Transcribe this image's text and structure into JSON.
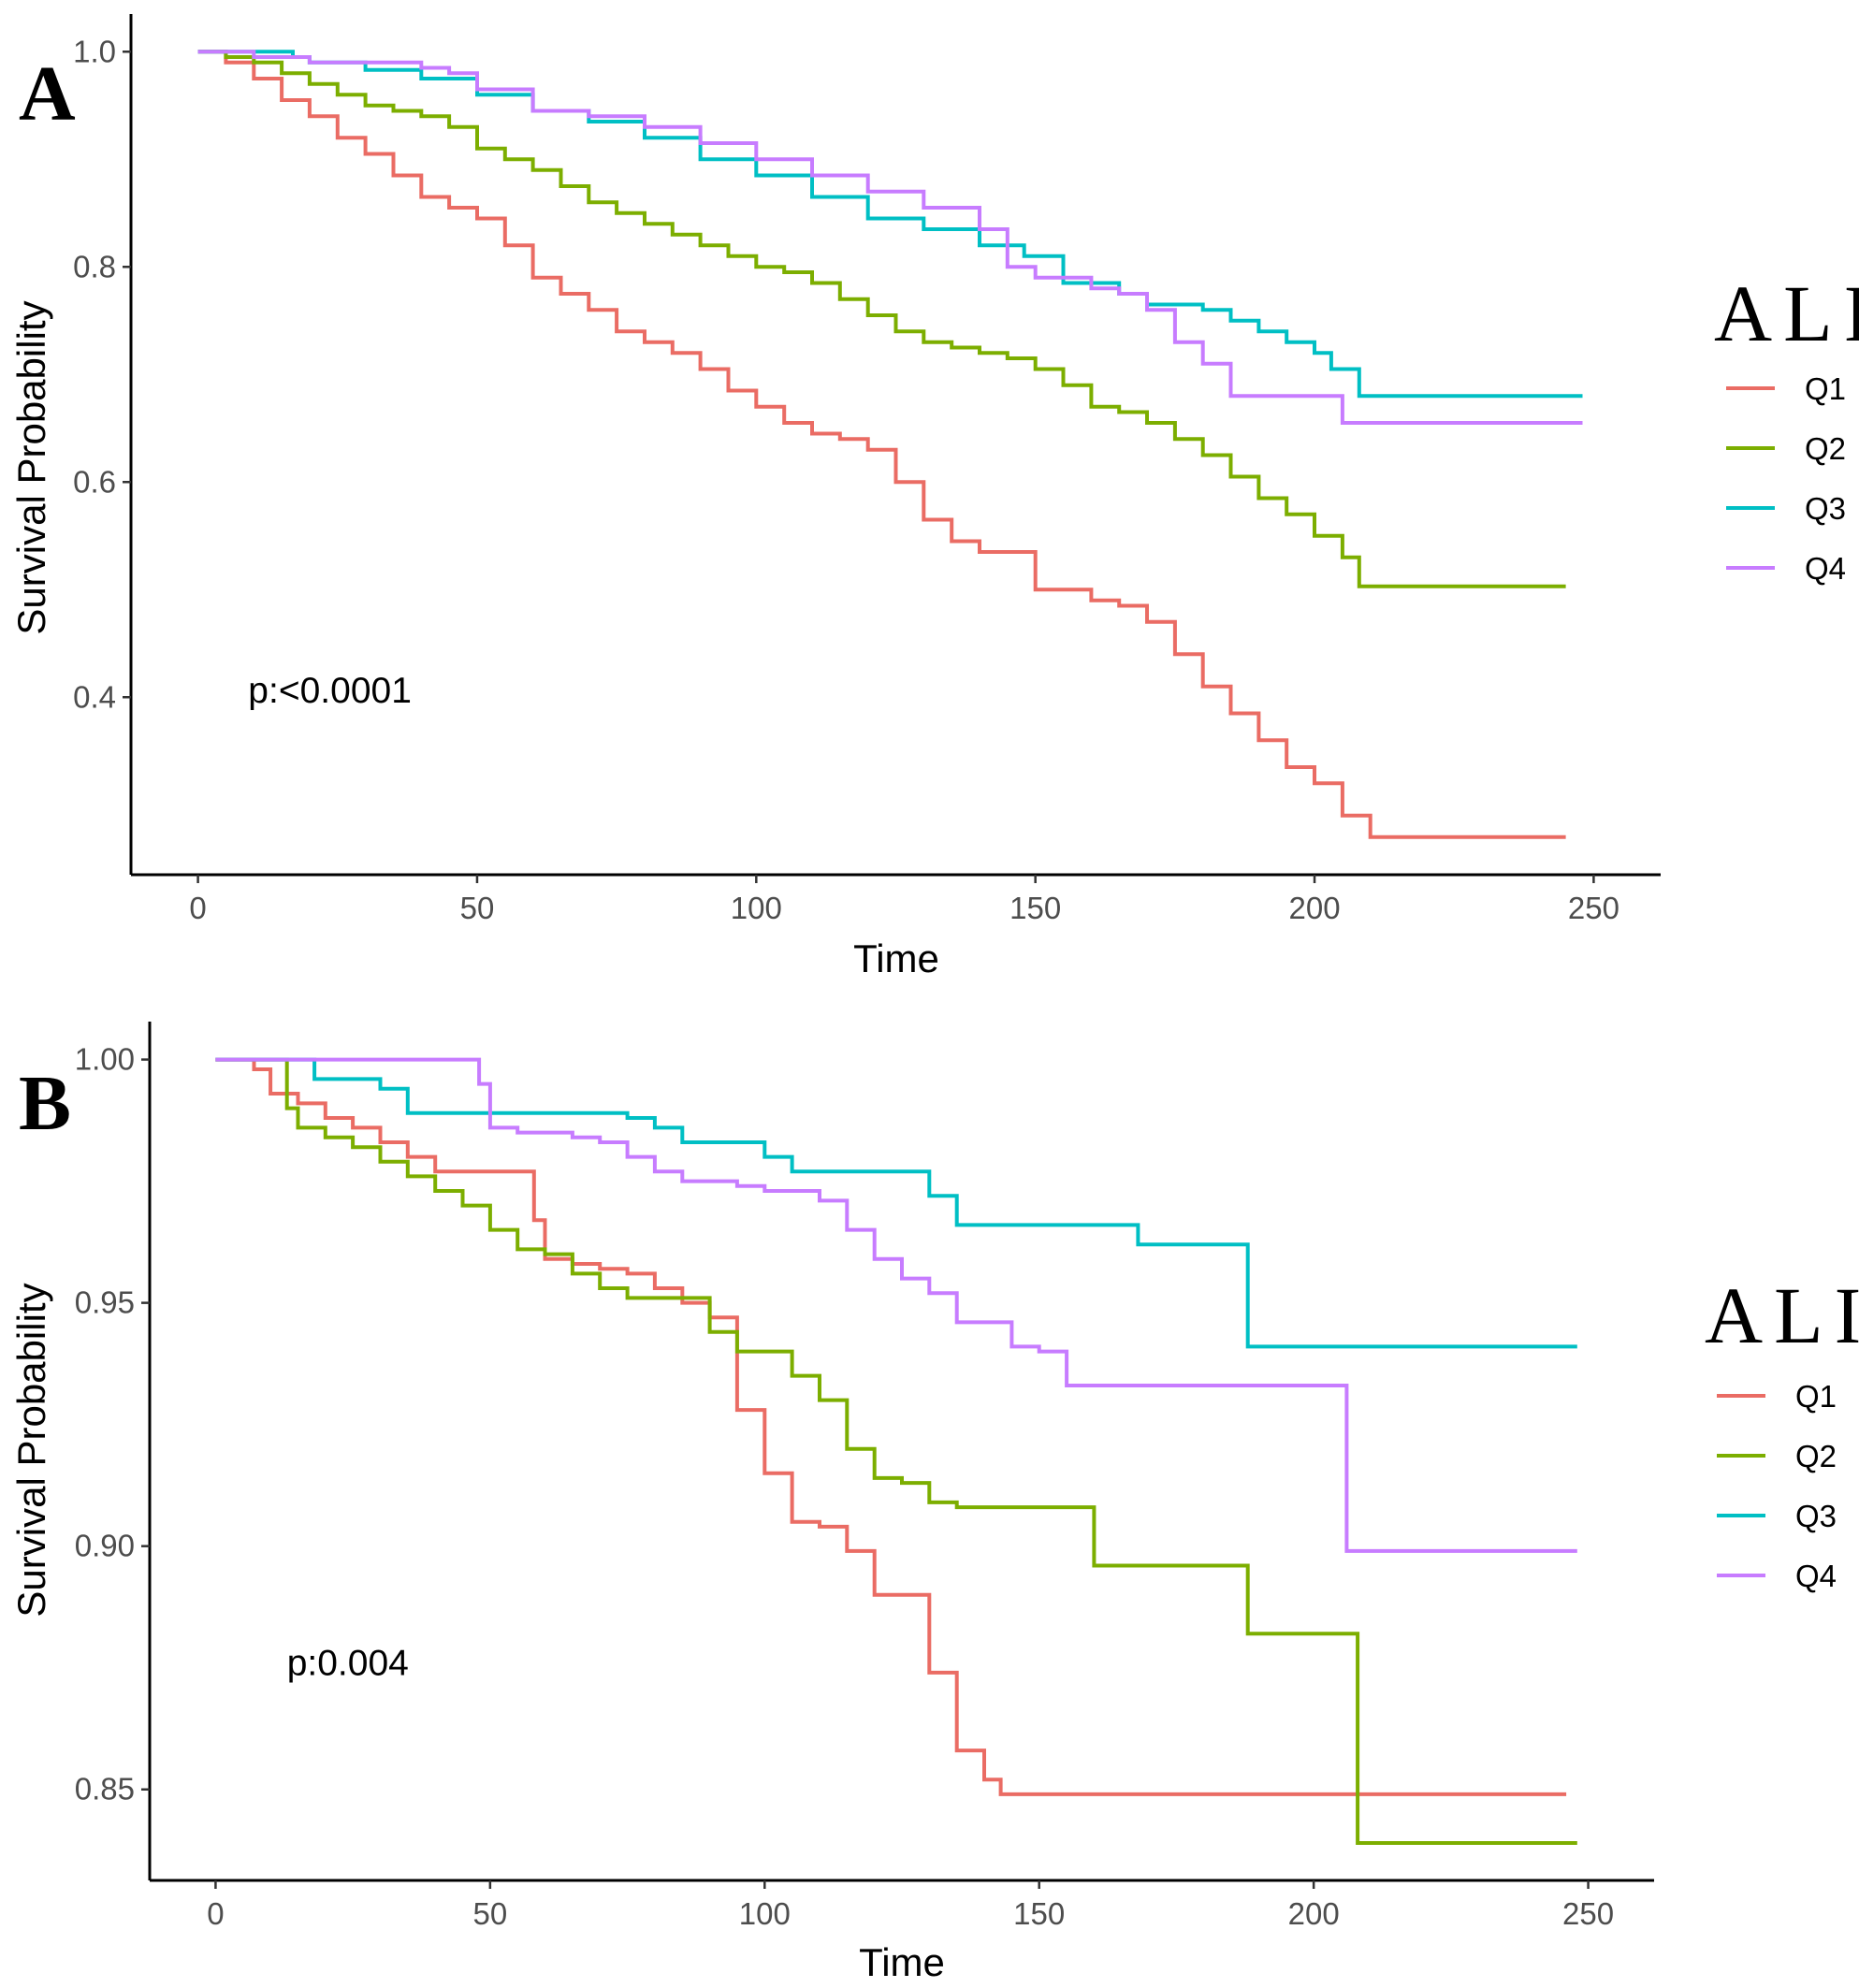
{
  "chart_data": [
    {
      "panel": "A",
      "type": "line",
      "step": true,
      "xlabel": "Time",
      "ylabel": "Survival Probability",
      "xlim": [
        -12,
        262
      ],
      "ylim": [
        0.235,
        1.035
      ],
      "xticks": [
        0,
        50,
        100,
        150,
        200,
        250
      ],
      "yticks": [
        0.4,
        0.6,
        0.8,
        1.0
      ],
      "xtick_labels": [
        "0",
        "50",
        "100",
        "150",
        "200",
        "250"
      ],
      "ytick_labels": [
        "0.4",
        "0.6",
        "0.8",
        "1.0"
      ],
      "annotation": {
        "text": "p:<0.0001",
        "x": 9,
        "y": 0.395
      },
      "legend": {
        "title": "ALI",
        "position": "right",
        "entries": [
          "Q1",
          "Q2",
          "Q3",
          "Q4"
        ]
      },
      "series": [
        {
          "name": "Q1",
          "color": "#ea6c64",
          "x": [
            0,
            5,
            10,
            15,
            20,
            25,
            30,
            35,
            40,
            45,
            50,
            55,
            60,
            65,
            70,
            75,
            80,
            85,
            90,
            95,
            100,
            105,
            110,
            115,
            120,
            125,
            130,
            135,
            140,
            145,
            150,
            155,
            160,
            165,
            170,
            175,
            180,
            185,
            190,
            195,
            200,
            205,
            210,
            245
          ],
          "y": [
            1.0,
            0.99,
            0.975,
            0.955,
            0.94,
            0.92,
            0.905,
            0.885,
            0.865,
            0.855,
            0.845,
            0.82,
            0.79,
            0.775,
            0.76,
            0.74,
            0.73,
            0.72,
            0.705,
            0.685,
            0.67,
            0.655,
            0.645,
            0.64,
            0.63,
            0.6,
            0.565,
            0.545,
            0.535,
            0.535,
            0.5,
            0.5,
            0.49,
            0.485,
            0.47,
            0.44,
            0.41,
            0.385,
            0.36,
            0.335,
            0.32,
            0.29,
            0.27,
            0.27
          ]
        },
        {
          "name": "Q2",
          "color": "#7cae00",
          "x": [
            0,
            5,
            10,
            15,
            20,
            25,
            30,
            35,
            40,
            45,
            50,
            55,
            60,
            65,
            70,
            75,
            80,
            85,
            90,
            95,
            100,
            105,
            110,
            115,
            120,
            125,
            130,
            135,
            140,
            145,
            150,
            155,
            160,
            165,
            170,
            175,
            180,
            185,
            190,
            195,
            200,
            205,
            208,
            245
          ],
          "y": [
            1.0,
            0.995,
            0.99,
            0.98,
            0.97,
            0.96,
            0.95,
            0.945,
            0.94,
            0.93,
            0.91,
            0.9,
            0.89,
            0.875,
            0.86,
            0.85,
            0.84,
            0.83,
            0.82,
            0.81,
            0.8,
            0.795,
            0.785,
            0.77,
            0.755,
            0.74,
            0.73,
            0.725,
            0.72,
            0.715,
            0.705,
            0.69,
            0.67,
            0.665,
            0.655,
            0.64,
            0.625,
            0.605,
            0.585,
            0.57,
            0.55,
            0.53,
            0.503,
            0.503
          ]
        },
        {
          "name": "Q3",
          "color": "#00bfc4",
          "x": [
            0,
            10,
            17,
            20,
            30,
            40,
            50,
            60,
            70,
            80,
            90,
            100,
            110,
            120,
            130,
            140,
            148,
            155,
            160,
            165,
            170,
            180,
            185,
            190,
            195,
            200,
            203,
            208,
            248
          ],
          "y": [
            1.0,
            1.0,
            0.995,
            0.99,
            0.983,
            0.975,
            0.96,
            0.945,
            0.935,
            0.92,
            0.9,
            0.885,
            0.865,
            0.845,
            0.835,
            0.82,
            0.81,
            0.785,
            0.785,
            0.775,
            0.765,
            0.76,
            0.75,
            0.74,
            0.73,
            0.72,
            0.705,
            0.68,
            0.68
          ]
        },
        {
          "name": "Q4",
          "color": "#c77cff",
          "x": [
            0,
            10,
            20,
            30,
            40,
            45,
            50,
            60,
            70,
            80,
            90,
            100,
            110,
            120,
            130,
            140,
            145,
            150,
            160,
            165,
            170,
            175,
            180,
            185,
            195,
            205,
            248
          ],
          "y": [
            1.0,
            0.995,
            0.99,
            0.99,
            0.985,
            0.98,
            0.965,
            0.945,
            0.94,
            0.93,
            0.915,
            0.9,
            0.885,
            0.87,
            0.855,
            0.835,
            0.8,
            0.79,
            0.78,
            0.775,
            0.76,
            0.73,
            0.71,
            0.68,
            0.68,
            0.655,
            0.655
          ]
        }
      ]
    },
    {
      "panel": "B",
      "type": "line",
      "step": true,
      "xlabel": "Time",
      "ylabel": "Survival Probability",
      "xlim": [
        -12,
        262
      ],
      "ylim": [
        0.8313,
        1.0078
      ],
      "xticks": [
        0,
        50,
        100,
        150,
        200,
        250
      ],
      "yticks": [
        0.85,
        0.9,
        0.95,
        1.0
      ],
      "xtick_labels": [
        "0",
        "50",
        "100",
        "150",
        "200",
        "250"
      ],
      "ytick_labels": [
        "0.85",
        "0.90",
        "0.95",
        "1.00"
      ],
      "annotation": {
        "text": "p:0.004",
        "x": 13,
        "y": 0.8735
      },
      "legend": {
        "title": "ALI",
        "position": "right",
        "entries": [
          "Q1",
          "Q2",
          "Q3",
          "Q4"
        ]
      },
      "series": [
        {
          "name": "Q1",
          "color": "#ea6c64",
          "x": [
            0,
            7,
            10,
            15,
            20,
            25,
            30,
            35,
            40,
            45,
            55,
            58,
            60,
            65,
            70,
            75,
            80,
            85,
            90,
            95,
            100,
            105,
            110,
            115,
            120,
            125,
            130,
            135,
            140,
            143,
            246
          ],
          "y": [
            1.0,
            0.998,
            0.993,
            0.991,
            0.988,
            0.986,
            0.983,
            0.98,
            0.977,
            0.977,
            0.977,
            0.967,
            0.959,
            0.958,
            0.957,
            0.956,
            0.953,
            0.95,
            0.947,
            0.928,
            0.915,
            0.905,
            0.904,
            0.899,
            0.89,
            0.89,
            0.874,
            0.858,
            0.852,
            0.849,
            0.849
          ]
        },
        {
          "name": "Q2",
          "color": "#7cae00",
          "x": [
            0,
            6,
            13,
            15,
            20,
            25,
            30,
            35,
            40,
            45,
            50,
            55,
            60,
            65,
            70,
            75,
            80,
            85,
            90,
            95,
            100,
            105,
            110,
            115,
            120,
            125,
            130,
            135,
            140,
            150,
            160,
            170,
            180,
            185,
            188,
            200,
            205,
            208,
            248
          ],
          "y": [
            1.0,
            1.0,
            0.99,
            0.986,
            0.984,
            0.982,
            0.979,
            0.976,
            0.973,
            0.97,
            0.965,
            0.961,
            0.96,
            0.956,
            0.953,
            0.951,
            0.951,
            0.951,
            0.944,
            0.94,
            0.94,
            0.935,
            0.93,
            0.92,
            0.914,
            0.913,
            0.909,
            0.908,
            0.908,
            0.908,
            0.896,
            0.896,
            0.896,
            0.896,
            0.882,
            0.882,
            0.882,
            0.839,
            0.839
          ]
        },
        {
          "name": "Q3",
          "color": "#00bfc4",
          "x": [
            0,
            10,
            18,
            25,
            30,
            35,
            50,
            70,
            75,
            80,
            85,
            90,
            100,
            105,
            110,
            120,
            130,
            135,
            150,
            168,
            180,
            188,
            248
          ],
          "y": [
            1.0,
            1.0,
            0.996,
            0.996,
            0.994,
            0.989,
            0.989,
            0.989,
            0.988,
            0.986,
            0.983,
            0.983,
            0.98,
            0.977,
            0.977,
            0.977,
            0.972,
            0.966,
            0.966,
            0.962,
            0.962,
            0.941,
            0.941
          ]
        },
        {
          "name": "Q4",
          "color": "#c77cff",
          "x": [
            0,
            45,
            48,
            50,
            55,
            60,
            65,
            70,
            75,
            80,
            85,
            90,
            95,
            100,
            105,
            110,
            115,
            120,
            125,
            130,
            135,
            140,
            145,
            150,
            155,
            160,
            180,
            200,
            206,
            248
          ],
          "y": [
            1.0,
            1.0,
            0.995,
            0.986,
            0.985,
            0.985,
            0.984,
            0.983,
            0.98,
            0.977,
            0.975,
            0.975,
            0.974,
            0.973,
            0.973,
            0.971,
            0.965,
            0.959,
            0.955,
            0.952,
            0.946,
            0.946,
            0.941,
            0.94,
            0.933,
            0.933,
            0.933,
            0.933,
            0.899,
            0.899
          ]
        }
      ]
    }
  ]
}
